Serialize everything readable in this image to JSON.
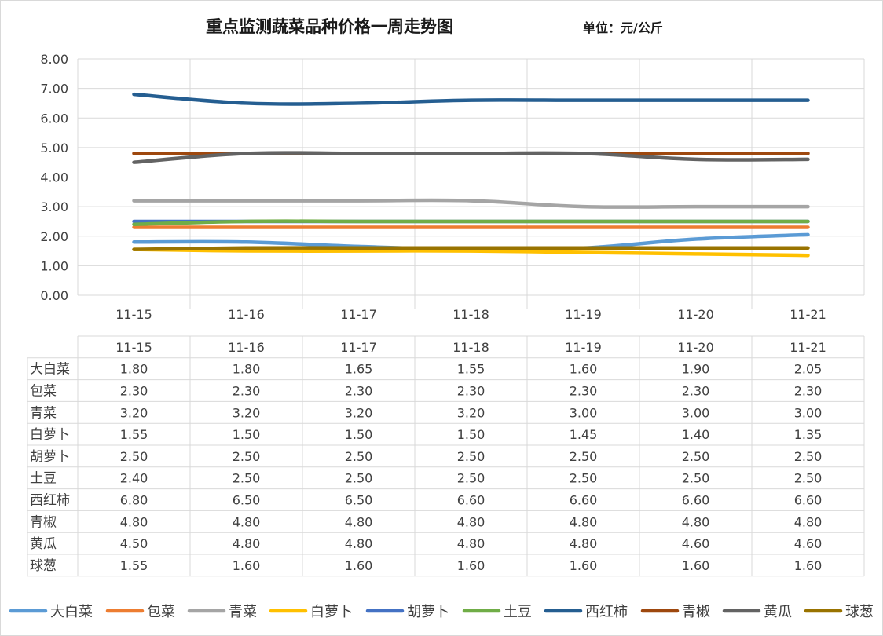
{
  "title": "重点监测蔬菜品种价格一周走势图",
  "unit": "单位：元/公斤",
  "chart_data": {
    "type": "line",
    "title": "重点监测蔬菜品种价格一周走势图",
    "unit_label": "单位：元/公斤",
    "categories": [
      "11-15",
      "11-16",
      "11-17",
      "11-18",
      "11-19",
      "11-20",
      "11-21"
    ],
    "yticks": [
      "0.00",
      "1.00",
      "2.00",
      "3.00",
      "4.00",
      "5.00",
      "6.00",
      "7.00",
      "8.00"
    ],
    "ylim": [
      0,
      8
    ],
    "grid": true,
    "legend_position": "bottom",
    "data_table": true,
    "series": [
      {
        "name": "大白菜",
        "color": "#5b9bd5",
        "values": [
          1.8,
          1.8,
          1.65,
          1.55,
          1.6,
          1.9,
          2.05
        ],
        "labels": [
          "1.80",
          "1.80",
          "1.65",
          "1.55",
          "1.60",
          "1.90",
          "2.05"
        ]
      },
      {
        "name": "包菜",
        "color": "#ed7d31",
        "values": [
          2.3,
          2.3,
          2.3,
          2.3,
          2.3,
          2.3,
          2.3
        ],
        "labels": [
          "2.30",
          "2.30",
          "2.30",
          "2.30",
          "2.30",
          "2.30",
          "2.30"
        ]
      },
      {
        "name": "青菜",
        "color": "#a5a5a5",
        "values": [
          3.2,
          3.2,
          3.2,
          3.2,
          3.0,
          3.0,
          3.0
        ],
        "labels": [
          "3.20",
          "3.20",
          "3.20",
          "3.20",
          "3.00",
          "3.00",
          "3.00"
        ]
      },
      {
        "name": "白萝卜",
        "color": "#ffc000",
        "values": [
          1.55,
          1.5,
          1.5,
          1.5,
          1.45,
          1.4,
          1.35
        ],
        "labels": [
          "1.55",
          "1.50",
          "1.50",
          "1.50",
          "1.45",
          "1.40",
          "1.35"
        ]
      },
      {
        "name": "胡萝卜",
        "color": "#4472c4",
        "values": [
          2.5,
          2.5,
          2.5,
          2.5,
          2.5,
          2.5,
          2.5
        ],
        "labels": [
          "2.50",
          "2.50",
          "2.50",
          "2.50",
          "2.50",
          "2.50",
          "2.50"
        ]
      },
      {
        "name": "土豆",
        "color": "#70ad47",
        "values": [
          2.4,
          2.5,
          2.5,
          2.5,
          2.5,
          2.5,
          2.5
        ],
        "labels": [
          "2.40",
          "2.50",
          "2.50",
          "2.50",
          "2.50",
          "2.50",
          "2.50"
        ]
      },
      {
        "name": "西红柿",
        "color": "#255e91",
        "values": [
          6.8,
          6.5,
          6.5,
          6.6,
          6.6,
          6.6,
          6.6
        ],
        "labels": [
          "6.80",
          "6.50",
          "6.50",
          "6.60",
          "6.60",
          "6.60",
          "6.60"
        ]
      },
      {
        "name": "青椒",
        "color": "#9e480e",
        "values": [
          4.8,
          4.8,
          4.8,
          4.8,
          4.8,
          4.8,
          4.8
        ],
        "labels": [
          "4.80",
          "4.80",
          "4.80",
          "4.80",
          "4.80",
          "4.80",
          "4.80"
        ]
      },
      {
        "name": "黄瓜",
        "color": "#636363",
        "values": [
          4.5,
          4.8,
          4.8,
          4.8,
          4.8,
          4.6,
          4.6
        ],
        "labels": [
          "4.50",
          "4.80",
          "4.80",
          "4.80",
          "4.80",
          "4.60",
          "4.60"
        ]
      },
      {
        "name": "球葱",
        "color": "#997300",
        "values": [
          1.55,
          1.6,
          1.6,
          1.6,
          1.6,
          1.6,
          1.6
        ],
        "labels": [
          "1.55",
          "1.60",
          "1.60",
          "1.60",
          "1.60",
          "1.60",
          "1.60"
        ]
      }
    ]
  }
}
